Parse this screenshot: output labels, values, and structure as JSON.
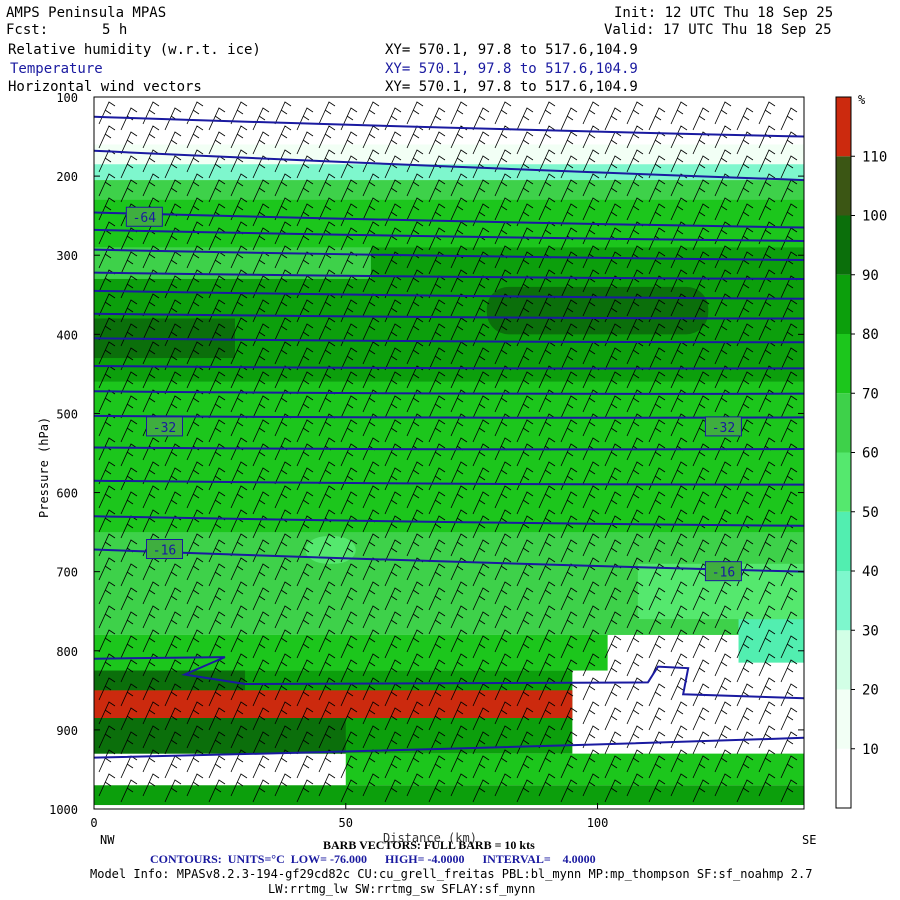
{
  "header": {
    "title": "AMPS Peninsula MPAS",
    "fcst_label": "Fcst:",
    "fcst_value": "5 h",
    "init": "Init: 12 UTC Thu 18 Sep 25",
    "valid": "Valid: 17 UTC Thu 18 Sep 25",
    "fields": [
      {
        "name": "Relative humidity (w.r.t. ice)",
        "xy": "XY= 570.1, 97.8 to 517.6,104.9"
      },
      {
        "name": "Temperature",
        "xy": "XY= 570.1, 97.8 to 517.6,104.9"
      },
      {
        "name": "Horizontal wind vectors",
        "xy": "XY= 570.1, 97.8 to 517.6,104.9"
      }
    ]
  },
  "chart_data": {
    "type": "heatmap",
    "title": "Relative humidity (w.r.t. ice), Temperature, Horizontal wind vectors",
    "xlabel": "Distance (km)",
    "ylabel": "Pressure (hPa)",
    "x_ticks": [
      0,
      50,
      100
    ],
    "xlim": [
      0,
      141
    ],
    "y_ticks": [
      100,
      200,
      300,
      400,
      500,
      600,
      700,
      800,
      900,
      1000
    ],
    "ylim": [
      1000,
      100
    ],
    "endpoints": {
      "left": "NW",
      "right": "SE"
    },
    "colorbar": {
      "unit": "%",
      "levels": [
        10,
        20,
        30,
        40,
        50,
        60,
        70,
        80,
        90,
        100,
        110
      ],
      "colors": [
        "#ffffff",
        "#f2fff5",
        "#d2ffe6",
        "#7ef7cd",
        "#52eeb0",
        "#55e86e",
        "#3ed14a",
        "#1cc61c",
        "#0c9f0c",
        "#0b6f0b",
        "#3b5614",
        "#cc2a0e"
      ]
    },
    "rh_regions": [
      {
        "level": 0,
        "xr": [
          0,
          141
        ],
        "pr": [
          100,
          160
        ]
      },
      {
        "level": 1,
        "xr": [
          0,
          141
        ],
        "pr": [
          160,
          185
        ]
      },
      {
        "level": 3,
        "xr": [
          0,
          141
        ],
        "pr": [
          185,
          205
        ]
      },
      {
        "level": 6,
        "xr": [
          0,
          141
        ],
        "pr": [
          205,
          780
        ]
      },
      {
        "level": 7,
        "xr": [
          0,
          141
        ],
        "pr": [
          230,
          290
        ]
      },
      {
        "level": 8,
        "xr": [
          55,
          141
        ],
        "pr": [
          290,
          330
        ]
      },
      {
        "level": 8,
        "xr": [
          0,
          141
        ],
        "pr": [
          330,
          460
        ]
      },
      {
        "level": 9,
        "xr": [
          0,
          28
        ],
        "pr": [
          380,
          430
        ]
      },
      {
        "level": 9,
        "xr": [
          78,
          122
        ],
        "pr": [
          340,
          400
        ]
      },
      {
        "level": 7,
        "xr": [
          0,
          141
        ],
        "pr": [
          460,
          650
        ]
      },
      {
        "level": 5,
        "xr": [
          42,
          52
        ],
        "pr": [
          655,
          690
        ]
      },
      {
        "level": 5,
        "xr": [
          108,
          141
        ],
        "pr": [
          690,
          760
        ]
      },
      {
        "level": 4,
        "xr": [
          128,
          141
        ],
        "pr": [
          760,
          815
        ]
      },
      {
        "level": 7,
        "xr": [
          0,
          102
        ],
        "pr": [
          780,
          825
        ]
      },
      {
        "level": 8,
        "xr": [
          0,
          95
        ],
        "pr": [
          825,
          930
        ]
      },
      {
        "level": 9,
        "xr": [
          0,
          30
        ],
        "pr": [
          825,
          850
        ]
      },
      {
        "level": 11,
        "xr": [
          0,
          95
        ],
        "pr": [
          850,
          885
        ]
      },
      {
        "level": 9,
        "xr": [
          0,
          50
        ],
        "pr": [
          885,
          930
        ]
      },
      {
        "level": 7,
        "xr": [
          50,
          141
        ],
        "pr": [
          930,
          970
        ]
      },
      {
        "level": 8,
        "xr": [
          0,
          141
        ],
        "pr": [
          970,
          995
        ]
      }
    ],
    "temperature_contours": {
      "units": "°C",
      "low": "-76.000",
      "high": "-4.0000",
      "interval": "4.0000",
      "lines": [
        {
          "p0": 125,
          "p1": 150
        },
        {
          "p0": 168,
          "p1": 205
        },
        {
          "p0": 246,
          "p1": 265
        },
        {
          "p0": 268,
          "p1": 282
        },
        {
          "p0": 293,
          "p1": 306
        },
        {
          "p0": 322,
          "p1": 330
        },
        {
          "p0": 345,
          "p1": 355
        },
        {
          "p0": 374,
          "p1": 380
        },
        {
          "p0": 405,
          "p1": 410
        },
        {
          "p0": 440,
          "p1": 443
        },
        {
          "p0": 472,
          "p1": 475
        },
        {
          "p0": 503,
          "p1": 505
        },
        {
          "p0": 543,
          "p1": 545
        },
        {
          "p0": 585,
          "p1": 590
        },
        {
          "p0": 630,
          "p1": 642
        },
        {
          "p0": 672,
          "p1": 700
        },
        {
          "p0": 935,
          "p1": 910
        }
      ],
      "labels": [
        {
          "text": "-64",
          "x": 10,
          "p": 252
        },
        {
          "text": "-32",
          "x": 14,
          "p": 517
        },
        {
          "text": "-32",
          "x": 125,
          "p": 517
        },
        {
          "text": "-16",
          "x": 14,
          "p": 672
        },
        {
          "text": "-16",
          "x": 125,
          "p": 700
        }
      ]
    },
    "barb_legend": "BARB VECTORS: FULL BARB = 10 kts"
  },
  "footer": {
    "contours": "CONTOURS:  UNITS=°C  LOW= -76.000      HIGH= -4.0000      INTERVAL=    4.0000",
    "model_info": "Model Info: MPASv8.2.3-194-gf29cd82c CU:cu_grell_freitas PBL:bl_mynn MP:mp_thompson SF:sf_noahmp 2.7",
    "model_info2": "LW:rrtmg_lw SW:rrtmg_sw SFLAY:sf_mynn"
  }
}
